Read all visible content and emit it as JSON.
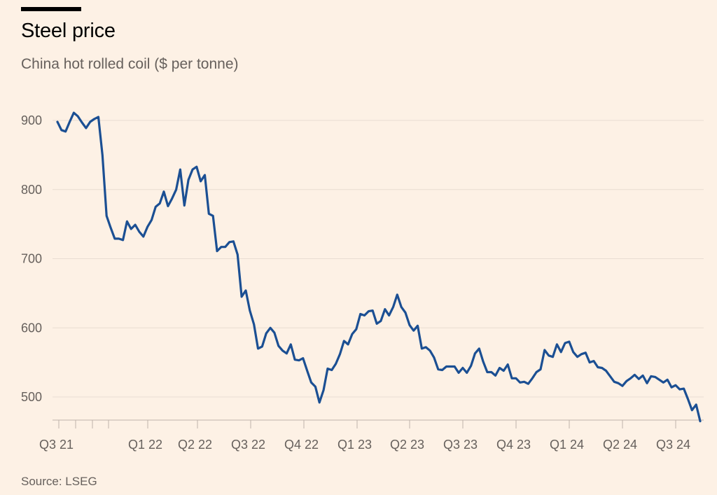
{
  "header": {
    "title": "Steel price",
    "subtitle": "China hot rolled coil ($ per tonne)"
  },
  "footer": {
    "source": "Source: LSEG"
  },
  "colors": {
    "background": "#fdf1e5",
    "line": "#1b4f93",
    "grid": "#e9ddd2",
    "text": "#66605c"
  },
  "chart_data": {
    "type": "line",
    "title": "Steel price",
    "subtitle": "China hot rolled coil ($ per tonne)",
    "xlabel": "",
    "ylabel": "",
    "ylim": [
      465,
      930
    ],
    "yticks": [
      500,
      600,
      700,
      800,
      900
    ],
    "grid": true,
    "x_tick_labels": [
      "Q3 21",
      "Q1 22",
      "Q2 22",
      "Q3 22",
      "Q4 22",
      "Q1 23",
      "Q2 23",
      "Q3 23",
      "Q4 23",
      "Q1 24",
      "Q2 24",
      "Q3 24"
    ],
    "series": [
      {
        "values": [
          898,
          886,
          884,
          898,
          911,
          906,
          897,
          889,
          898,
          902,
          905,
          850,
          762,
          745,
          729,
          729,
          727,
          754,
          743,
          749,
          739,
          732,
          746,
          756,
          775,
          780,
          797,
          776,
          787,
          800,
          829,
          777,
          814,
          829,
          833,
          812,
          821,
          765,
          762,
          711,
          717,
          717,
          724,
          725,
          706,
          645,
          654,
          625,
          605,
          570,
          573,
          592,
          600,
          593,
          574,
          567,
          563,
          576,
          554,
          553,
          556,
          538,
          521,
          515,
          492,
          510,
          541,
          539,
          548,
          562,
          581,
          576,
          591,
          598,
          620,
          618,
          624,
          625,
          606,
          610,
          627,
          618,
          630,
          648,
          630,
          622,
          604,
          596,
          603,
          570,
          572,
          567,
          557,
          540,
          539,
          544,
          544,
          544,
          535,
          542,
          535,
          545,
          563,
          570,
          551,
          536,
          536,
          531,
          542,
          538,
          547,
          527,
          527,
          521,
          522,
          519,
          527,
          536,
          540,
          568,
          560,
          558,
          576,
          565,
          578,
          580,
          565,
          558,
          562,
          564,
          550,
          552,
          543,
          542,
          538,
          530,
          522,
          520,
          516,
          523,
          527,
          532,
          526,
          531,
          520,
          530,
          529,
          525,
          521,
          525,
          514,
          517,
          511,
          512,
          497,
          481,
          489,
          465
        ]
      }
    ]
  }
}
